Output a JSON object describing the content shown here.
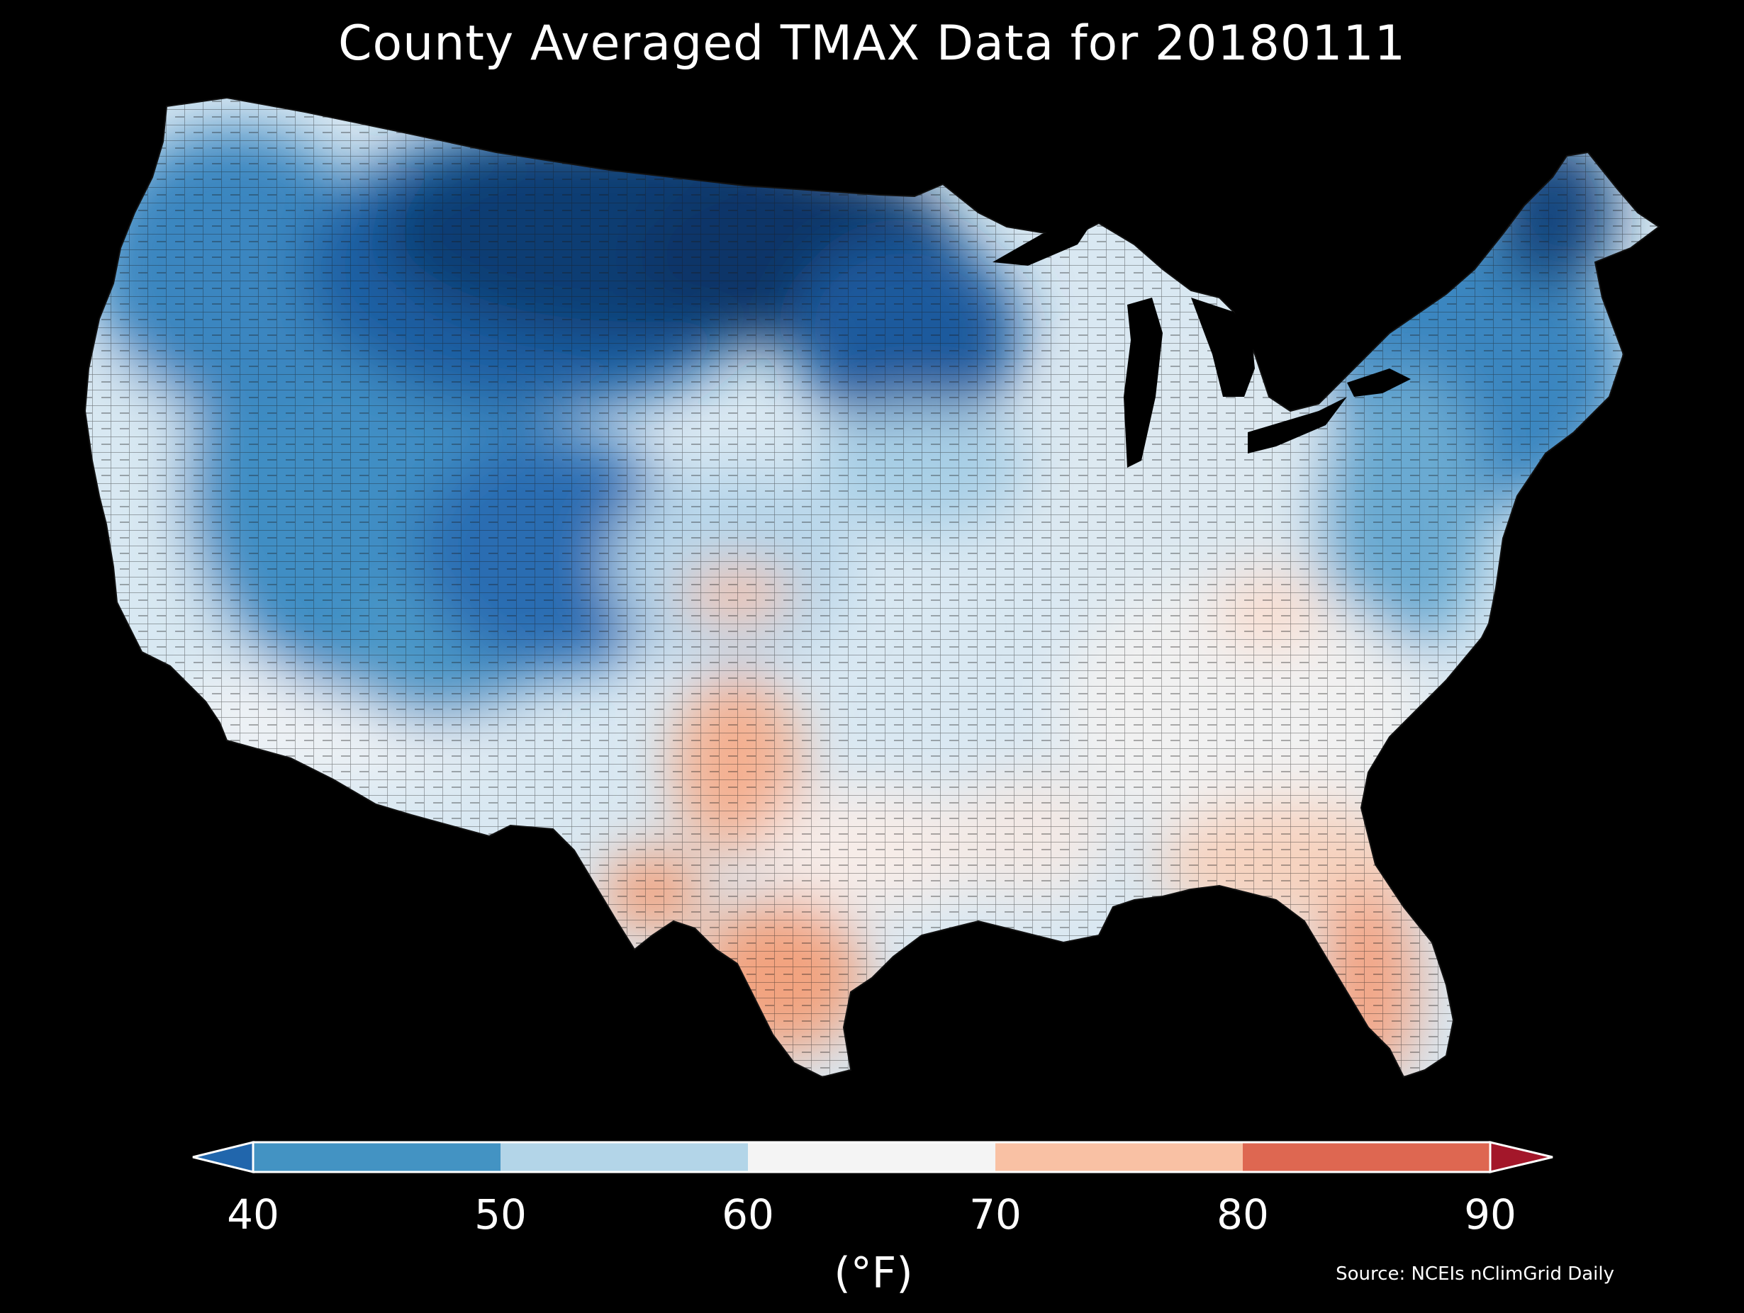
{
  "title": "County Averaged TMAX Data for 20180111",
  "colorbar": {
    "ticks": [
      "40",
      "50",
      "60",
      "70",
      "80",
      "90"
    ],
    "unit_label": "(°F)",
    "colors": {
      "below_40": "#2166ac",
      "40_50": "#4393c3",
      "50_60": "#b3d5e8",
      "60_70": "#f4f4f4",
      "70_80": "#f9c1a4",
      "80_90": "#de6751",
      "above_90": "#a3172a"
    }
  },
  "source": "Source: NCEIs nClimGrid Daily",
  "map": {
    "region": "Contiguous United States counties",
    "background": "#000000",
    "water": "#000000",
    "county_border_color": "#222222",
    "pattern": "coldest (deep blue, below 40°F) across the northern Plains and upper Midwest; blues across the West and Northeast; pale blue to white across the central and southeast; light red (70-80°F) in southern Texas, Florida, southern New Mexico and parts of the Gulf coast"
  }
}
